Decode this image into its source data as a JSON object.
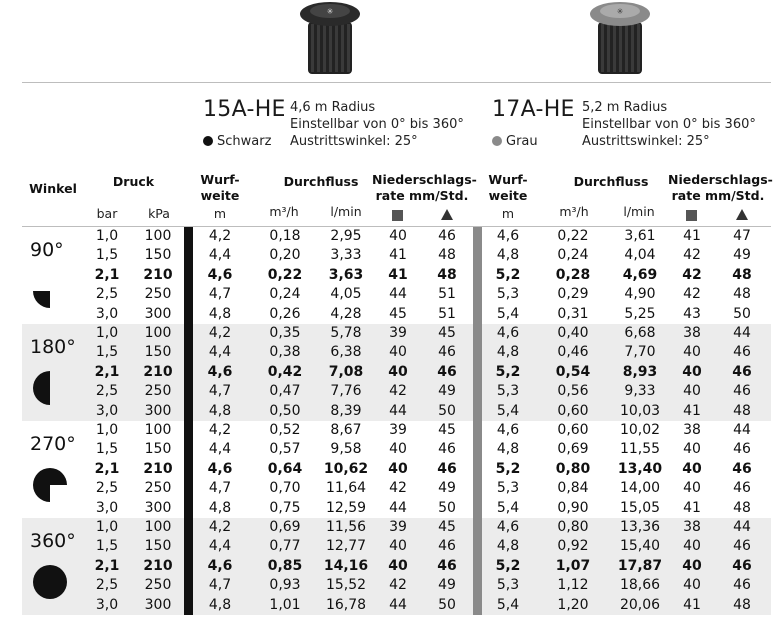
{
  "nozzles": [
    {
      "name": "15A-HE",
      "radius": "4,6 m Radius",
      "adjust": "Einstellbar von 0° bis 360°",
      "angle": "Austrittswinkel: 25°",
      "color": "Schwarz",
      "dot": "#111111"
    },
    {
      "name": "17A-HE",
      "radius": "5,2 m Radius",
      "adjust": "Einstellbar von 0° bis 360°",
      "angle": "Austrittswinkel: 25°",
      "color": "Grau",
      "dot": "#8a8a8a"
    }
  ],
  "headers": {
    "winkel": "Winkel",
    "druck": "Druck",
    "bar": "bar",
    "kpa": "kPa",
    "wurf1": "Wurf-",
    "wurf2": "weite",
    "m": "m",
    "durchfluss": "Durchfluss",
    "m3h": "m³/h",
    "lmin": "l/min",
    "nied1": "Niederschlags-",
    "nied2": "rate mm/Std."
  },
  "groups": [
    {
      "angle": "90°",
      "fraction": 0.25,
      "shaded": false,
      "rows": [
        [
          "1,0",
          "100",
          "4,2",
          "0,18",
          "2,95",
          "40",
          "46",
          "4,6",
          "0,22",
          "3,61",
          "41",
          "47"
        ],
        [
          "1,5",
          "150",
          "4,4",
          "0,20",
          "3,33",
          "41",
          "48",
          "4,8",
          "0,24",
          "4,04",
          "42",
          "49"
        ],
        [
          "2,1",
          "210",
          "4,6",
          "0,22",
          "3,63",
          "41",
          "48",
          "5,2",
          "0,28",
          "4,69",
          "42",
          "48"
        ],
        [
          "2,5",
          "250",
          "4,7",
          "0,24",
          "4,05",
          "44",
          "51",
          "5,3",
          "0,29",
          "4,90",
          "42",
          "48"
        ],
        [
          "3,0",
          "300",
          "4,8",
          "0,26",
          "4,28",
          "45",
          "51",
          "5,4",
          "0,31",
          "5,25",
          "43",
          "50"
        ]
      ]
    },
    {
      "angle": "180°",
      "fraction": 0.5,
      "shaded": true,
      "rows": [
        [
          "1,0",
          "100",
          "4,2",
          "0,35",
          "5,78",
          "39",
          "45",
          "4,6",
          "0,40",
          "6,68",
          "38",
          "44"
        ],
        [
          "1,5",
          "150",
          "4,4",
          "0,38",
          "6,38",
          "40",
          "46",
          "4,8",
          "0,46",
          "7,70",
          "40",
          "46"
        ],
        [
          "2,1",
          "210",
          "4,6",
          "0,42",
          "7,08",
          "40",
          "46",
          "5,2",
          "0,54",
          "8,93",
          "40",
          "46"
        ],
        [
          "2,5",
          "250",
          "4,7",
          "0,47",
          "7,76",
          "42",
          "49",
          "5,3",
          "0,56",
          "9,33",
          "40",
          "46"
        ],
        [
          "3,0",
          "300",
          "4,8",
          "0,50",
          "8,39",
          "44",
          "50",
          "5,4",
          "0,60",
          "10,03",
          "41",
          "48"
        ]
      ]
    },
    {
      "angle": "270°",
      "fraction": 0.75,
      "shaded": false,
      "rows": [
        [
          "1,0",
          "100",
          "4,2",
          "0,52",
          "8,67",
          "39",
          "45",
          "4,6",
          "0,60",
          "10,02",
          "38",
          "44"
        ],
        [
          "1,5",
          "150",
          "4,4",
          "0,57",
          "9,58",
          "40",
          "46",
          "4,8",
          "0,69",
          "11,55",
          "40",
          "46"
        ],
        [
          "2,1",
          "210",
          "4,6",
          "0,64",
          "10,62",
          "40",
          "46",
          "5,2",
          "0,80",
          "13,40",
          "40",
          "46"
        ],
        [
          "2,5",
          "250",
          "4,7",
          "0,70",
          "11,64",
          "42",
          "49",
          "5,3",
          "0,84",
          "14,00",
          "40",
          "46"
        ],
        [
          "3,0",
          "300",
          "4,8",
          "0,75",
          "12,59",
          "44",
          "50",
          "5,4",
          "0,90",
          "15,05",
          "41",
          "48"
        ]
      ]
    },
    {
      "angle": "360°",
      "fraction": 1,
      "shaded": true,
      "rows": [
        [
          "1,0",
          "100",
          "4,2",
          "0,69",
          "11,56",
          "39",
          "45",
          "4,6",
          "0,80",
          "13,36",
          "38",
          "44"
        ],
        [
          "1,5",
          "150",
          "4,4",
          "0,77",
          "12,77",
          "40",
          "46",
          "4,8",
          "0,92",
          "15,40",
          "40",
          "46"
        ],
        [
          "2,1",
          "210",
          "4,6",
          "0,85",
          "14,16",
          "40",
          "46",
          "5,2",
          "1,07",
          "17,87",
          "40",
          "46"
        ],
        [
          "2,5",
          "250",
          "4,7",
          "0,93",
          "15,52",
          "42",
          "49",
          "5,3",
          "1,12",
          "18,66",
          "40",
          "46"
        ],
        [
          "3,0",
          "300",
          "4,8",
          "1,01",
          "16,78",
          "44",
          "50",
          "5,4",
          "1,20",
          "20,06",
          "41",
          "48"
        ]
      ]
    }
  ],
  "bold_row_index": 2
}
